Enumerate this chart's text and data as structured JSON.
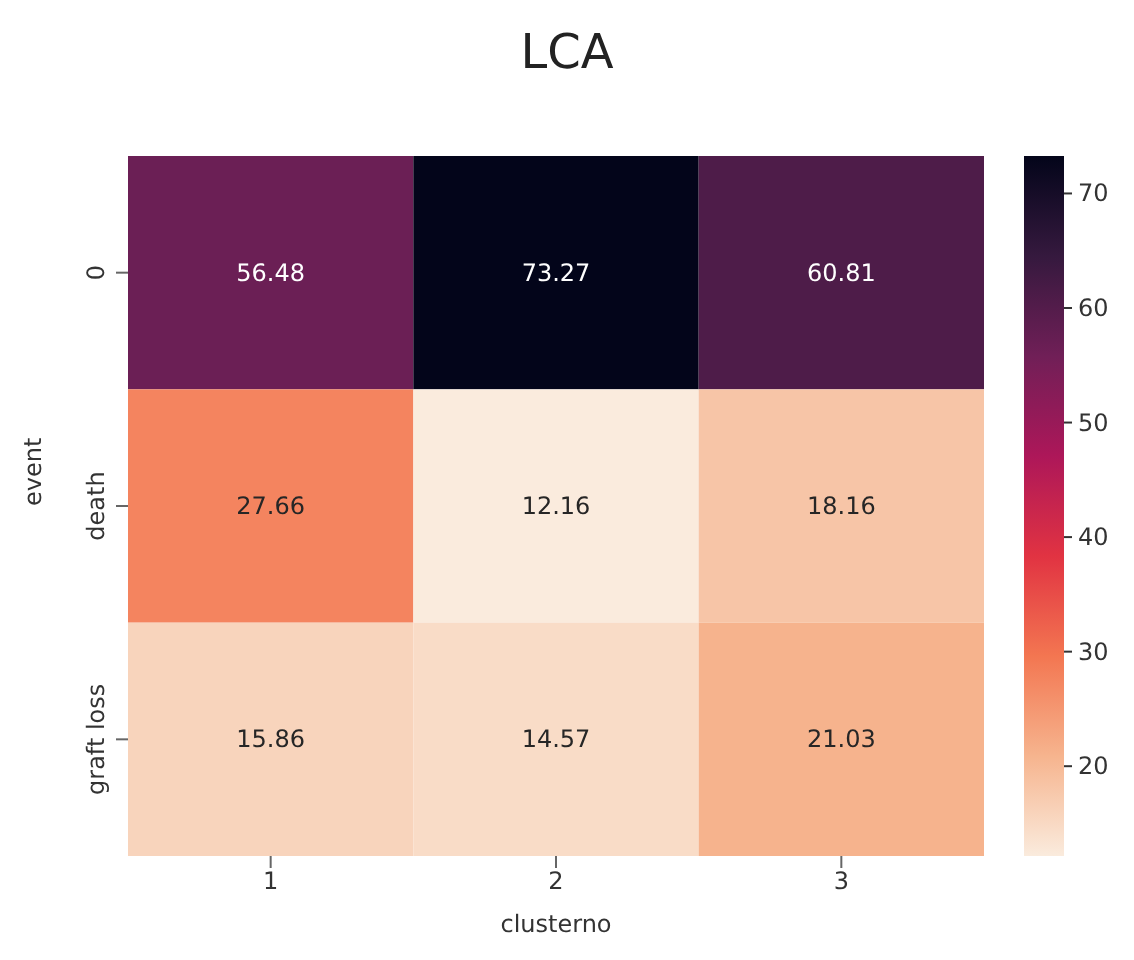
{
  "chart_data": {
    "type": "heatmap",
    "title": "LCA",
    "xlabel": "clusterno",
    "ylabel": "event",
    "categories": [
      "1",
      "2",
      "3"
    ],
    "y_categories": [
      "0",
      "death",
      "graft loss"
    ],
    "cells": [
      [
        56.48,
        73.27,
        60.81
      ],
      [
        27.66,
        12.16,
        18.16
      ],
      [
        15.86,
        14.57,
        21.03
      ]
    ],
    "data_labels": true,
    "clim": [
      12.16,
      73.27
    ],
    "cticks": [
      20,
      30,
      40,
      50,
      60,
      70
    ]
  }
}
